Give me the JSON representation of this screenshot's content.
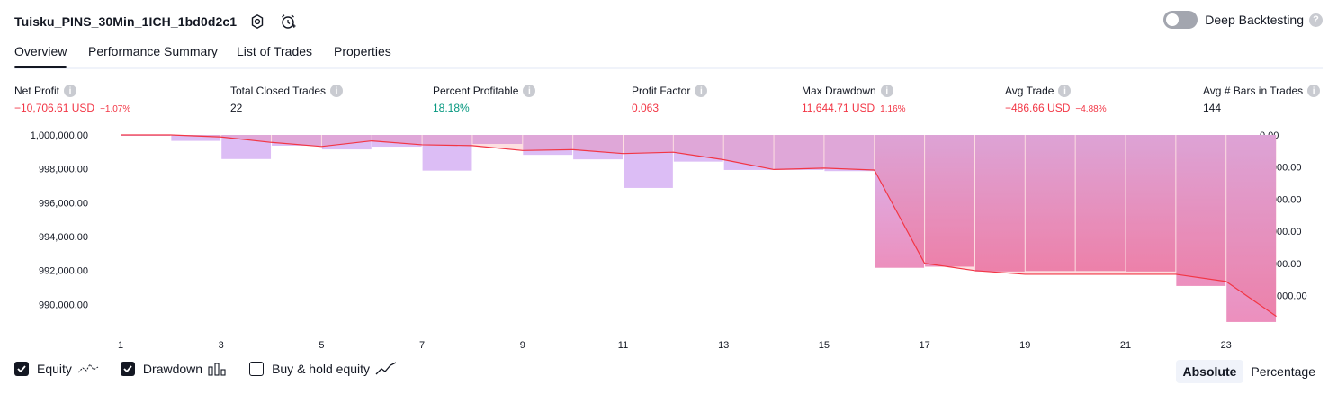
{
  "header": {
    "title": "Tuisku_PINS_30Min_1ICH_1bd0d2c1",
    "icons": [
      "gear-icon",
      "alarm-add-icon"
    ]
  },
  "deep_backtesting": {
    "label": "Deep Backtesting",
    "enabled": false,
    "help": "?"
  },
  "tabs": [
    {
      "label": "Overview",
      "active": true
    },
    {
      "label": "Performance Summary",
      "active": false
    },
    {
      "label": "List of Trades",
      "active": false
    },
    {
      "label": "Properties",
      "active": false
    }
  ],
  "metrics": {
    "net_profit": {
      "label": "Net Profit",
      "value": "−10,706.61 USD",
      "pct": "−1.07%"
    },
    "total_closed_trades": {
      "label": "Total Closed Trades",
      "value": "22"
    },
    "percent_profitable": {
      "label": "Percent Profitable",
      "value": "18.18%"
    },
    "profit_factor": {
      "label": "Profit Factor",
      "value": "0.063"
    },
    "max_drawdown": {
      "label": "Max Drawdown",
      "value": "11,644.71 USD",
      "pct": "1.16%"
    },
    "avg_trade": {
      "label": "Avg Trade",
      "value": "−486.66 USD",
      "pct": "−4.88%"
    },
    "avg_bars": {
      "label": "Avg # Bars in Trades",
      "value": "144"
    }
  },
  "chart_data": {
    "type": "line",
    "x_ticks": [
      "1",
      "3",
      "5",
      "7",
      "9",
      "11",
      "13",
      "15",
      "17",
      "19",
      "21",
      "23"
    ],
    "left_axis": {
      "ticks": [
        "1,000,000.00",
        "998,000.00",
        "996,000.00",
        "994,000.00",
        "992,000.00",
        "990,000.00"
      ],
      "tick_values": [
        1000000,
        998000,
        996000,
        994000,
        992000,
        990000
      ],
      "ylim": [
        988900,
        1000000
      ]
    },
    "right_axis": {
      "ticks": [
        "0.00",
        "-2,000.00",
        "-4,000.00",
        "-6,000.00",
        "-8,000.00",
        "-10,000.00"
      ],
      "tick_values": [
        0,
        -2000,
        -4000,
        -6000,
        -8000,
        -10000
      ],
      "ylim": [
        -11700,
        0
      ]
    },
    "equity": {
      "x": [
        1,
        2,
        3,
        4,
        5,
        6,
        7,
        8,
        9,
        10,
        11,
        12,
        13,
        14,
        15,
        16,
        17,
        18,
        19,
        20,
        21,
        22,
        23
      ],
      "values": [
        1000000,
        999880,
        999560,
        999320,
        999650,
        999420,
        999370,
        999080,
        999130,
        998900,
        998980,
        998540,
        997960,
        998040,
        997930,
        992420,
        991990,
        991770,
        991770,
        991770,
        991770,
        991350,
        989290
      ]
    },
    "drawdown": {
      "x": [
        1,
        2,
        3,
        4,
        5,
        6,
        7,
        8,
        9,
        10,
        11,
        12,
        13,
        14,
        15,
        16,
        17,
        18,
        19,
        20,
        21,
        22,
        23
      ],
      "values": [
        -40,
        -370,
        -1500,
        -670,
        -900,
        -730,
        -2220,
        -560,
        -1240,
        -1520,
        -3300,
        -1660,
        -2180,
        -2180,
        -2250,
        -8270,
        -8200,
        -8500,
        -8470,
        -8470,
        -8500,
        -9400,
        -11640
      ]
    },
    "series": [
      {
        "name": "Equity",
        "color": "#f23645",
        "enabled": true
      },
      {
        "name": "Drawdown",
        "color": "#b39ddb",
        "enabled": true
      },
      {
        "name": "Buy & hold equity",
        "enabled": false
      }
    ]
  },
  "scale_mode": {
    "options": [
      "Absolute",
      "Percentage"
    ],
    "active": "Absolute"
  }
}
